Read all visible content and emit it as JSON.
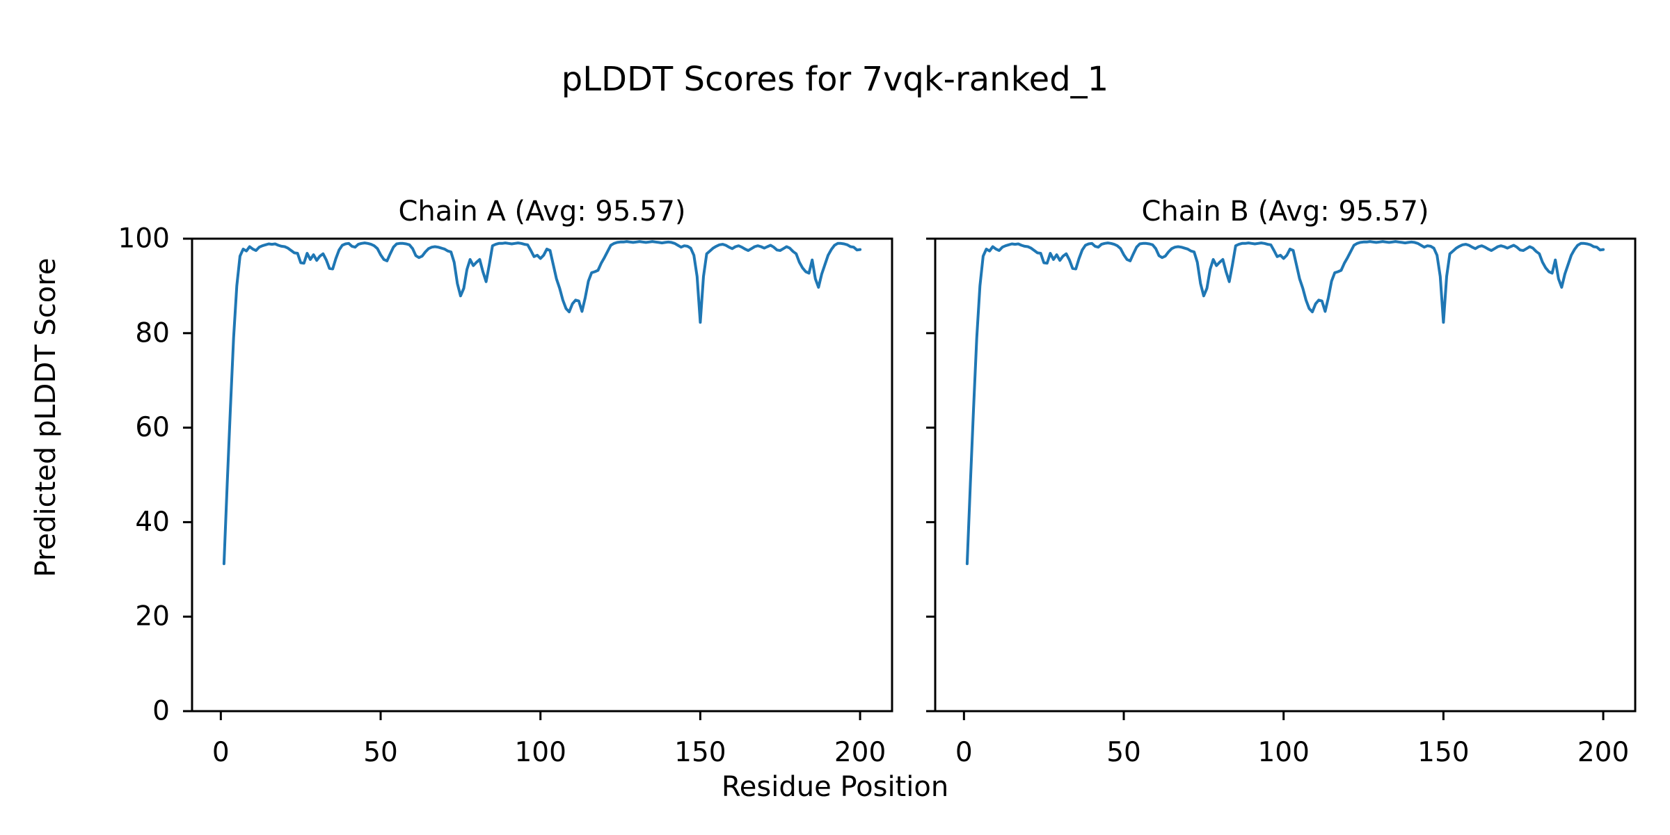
{
  "figure": {
    "background": "#ffffff",
    "text_color": "#000000"
  },
  "chart_data": {
    "type": "line",
    "suptitle": "pLDDT Scores for 7vqk-ranked_1",
    "xlabel": "Residue Position",
    "ylabel": "Predicted pLDDT Score",
    "grid": false,
    "legend_position": "none",
    "line_color": "#1f77b4",
    "axis_color": "#000000",
    "x_start": 1,
    "xlim": [
      -9,
      210
    ],
    "ylim": [
      0,
      100
    ],
    "x_ticks": [
      0,
      50,
      100,
      150,
      200
    ],
    "y_ticks": [
      0,
      20,
      40,
      60,
      80,
      100
    ],
    "subplots": [
      {
        "chain": "A",
        "title": "Chain A (Avg: 95.57)",
        "avg": 95.57,
        "values": [
          31.2,
          48,
          64,
          79,
          90,
          96.3,
          97.8,
          97.4,
          98.3,
          97.8,
          97.5,
          98.2,
          98.5,
          98.7,
          98.9,
          98.8,
          98.9,
          98.6,
          98.4,
          98.3,
          98,
          97.5,
          97,
          96.9,
          94.9,
          94.8,
          96.9,
          95.6,
          96.6,
          95.4,
          96.3,
          96.8,
          95.5,
          93.7,
          93.6,
          95.8,
          97.6,
          98.6,
          98.9,
          99,
          98.4,
          98.2,
          98.8,
          99,
          99.1,
          99,
          98.8,
          98.5,
          97.9,
          96.6,
          95.6,
          95.3,
          96.8,
          98.2,
          98.9,
          99,
          99,
          98.9,
          98.7,
          97.9,
          96.4,
          96,
          96.3,
          97.2,
          97.9,
          98.2,
          98.3,
          98.2,
          98,
          97.8,
          97.4,
          97.2,
          95,
          90.5,
          87.9,
          89.5,
          93.5,
          95.6,
          94.3,
          95,
          95.6,
          93,
          90.9,
          94.5,
          98.5,
          98.8,
          99,
          99,
          99.1,
          99,
          98.9,
          99,
          99.1,
          99,
          98.8,
          98.7,
          97.5,
          96.2,
          96.5,
          95.8,
          96.5,
          97.8,
          97.5,
          94.5,
          91.5,
          89.5,
          87,
          85.2,
          84.5,
          86.2,
          87,
          86.8,
          84.6,
          87.5,
          91,
          92.8,
          93,
          93.3,
          94.8,
          96,
          97.3,
          98.6,
          99,
          99.2,
          99.3,
          99.3,
          99.4,
          99.3,
          99.2,
          99.3,
          99.4,
          99.3,
          99.2,
          99.3,
          99.4,
          99.3,
          99.2,
          99.1,
          99.2,
          99.3,
          99.2,
          99,
          98.6,
          98.2,
          98.5,
          98.4,
          98,
          96.5,
          92,
          82.3,
          92,
          96.8,
          97.4,
          98,
          98.4,
          98.7,
          98.8,
          98.6,
          98.2,
          97.9,
          98.3,
          98.5,
          98.2,
          97.8,
          97.5,
          97.9,
          98.3,
          98.5,
          98.3,
          98,
          98.3,
          98.6,
          98.2,
          97.6,
          97.5,
          97.9,
          98.3,
          98,
          97.3,
          96.8,
          95,
          93.8,
          93,
          92.7,
          95.5,
          91.5,
          89.7,
          92.5,
          94.5,
          96.5,
          97.7,
          98.6,
          99,
          99,
          98.9,
          98.7,
          98.3,
          98.2,
          97.6,
          97.7
        ]
      },
      {
        "chain": "B",
        "title": "Chain B (Avg: 95.57)",
        "avg": 95.57,
        "values": [
          31.2,
          48,
          64,
          79,
          90,
          96.3,
          97.8,
          97.4,
          98.3,
          97.8,
          97.5,
          98.2,
          98.5,
          98.7,
          98.9,
          98.8,
          98.9,
          98.6,
          98.4,
          98.3,
          98,
          97.5,
          97,
          96.9,
          94.9,
          94.8,
          96.9,
          95.6,
          96.6,
          95.4,
          96.3,
          96.8,
          95.5,
          93.7,
          93.6,
          95.8,
          97.6,
          98.6,
          98.9,
          99,
          98.4,
          98.2,
          98.8,
          99,
          99.1,
          99,
          98.8,
          98.5,
          97.9,
          96.6,
          95.6,
          95.3,
          96.8,
          98.2,
          98.9,
          99,
          99,
          98.9,
          98.7,
          97.9,
          96.4,
          96,
          96.3,
          97.2,
          97.9,
          98.2,
          98.3,
          98.2,
          98,
          97.8,
          97.4,
          97.2,
          95,
          90.5,
          87.9,
          89.5,
          93.5,
          95.6,
          94.3,
          95,
          95.6,
          93,
          90.9,
          94.5,
          98.5,
          98.8,
          99,
          99,
          99.1,
          99,
          98.9,
          99,
          99.1,
          99,
          98.8,
          98.7,
          97.5,
          96.2,
          96.5,
          95.8,
          96.5,
          97.8,
          97.5,
          94.5,
          91.5,
          89.5,
          87,
          85.2,
          84.5,
          86.2,
          87,
          86.8,
          84.6,
          87.5,
          91,
          92.8,
          93,
          93.3,
          94.8,
          96,
          97.3,
          98.6,
          99,
          99.2,
          99.3,
          99.3,
          99.4,
          99.3,
          99.2,
          99.3,
          99.4,
          99.3,
          99.2,
          99.3,
          99.4,
          99.3,
          99.2,
          99.1,
          99.2,
          99.3,
          99.2,
          99,
          98.6,
          98.2,
          98.5,
          98.4,
          98,
          96.5,
          92,
          82.3,
          92,
          96.8,
          97.4,
          98,
          98.4,
          98.7,
          98.8,
          98.6,
          98.2,
          97.9,
          98.3,
          98.5,
          98.2,
          97.8,
          97.5,
          97.9,
          98.3,
          98.5,
          98.3,
          98,
          98.3,
          98.6,
          98.2,
          97.6,
          97.5,
          97.9,
          98.3,
          98,
          97.3,
          96.8,
          95,
          93.8,
          93,
          92.7,
          95.5,
          91.5,
          89.7,
          92.5,
          94.5,
          96.5,
          97.7,
          98.6,
          99,
          99,
          98.9,
          98.7,
          98.3,
          98.2,
          97.6,
          97.7
        ]
      }
    ]
  }
}
